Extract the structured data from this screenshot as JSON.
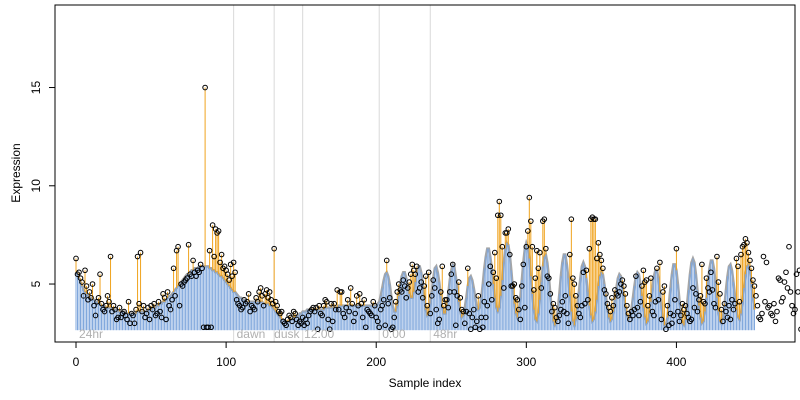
{
  "chart_data": {
    "type": "scatter",
    "title": "",
    "xlabel": "Sample index",
    "ylabel": "Expression",
    "xlim": [
      -14,
      479
    ],
    "ylim": [
      2.05,
      19.2
    ],
    "grid": false,
    "x_ticks": [
      0,
      100,
      200,
      300,
      400
    ],
    "x_tick_labels": [
      "0",
      "100",
      "200",
      "300",
      "400"
    ],
    "y_ticks": [
      5,
      10,
      15
    ],
    "y_tick_labels": [
      "5",
      "10",
      "15"
    ],
    "baseline": 2.65,
    "phase_boundaries": [
      105,
      132,
      151,
      202,
      236
    ],
    "phase_labels": [
      {
        "x": 2,
        "text": "24hr"
      },
      {
        "x": 107,
        "text": "dawn"
      },
      {
        "x": 132,
        "text": "dusk"
      },
      {
        "x": 152,
        "text": "12:00"
      },
      {
        "x": 204,
        "text": "0:00"
      },
      {
        "x": 238,
        "text": "48hr"
      }
    ],
    "series": [
      {
        "role": "points",
        "values": [
          6.3,
          5.5,
          5.6,
          5.3,
          5.1,
          4.4,
          5.7,
          4.9,
          4.2,
          4.6,
          4.3,
          5.0,
          3.9,
          3.4,
          4.1,
          4.3,
          5.5,
          4.0,
          3.7,
          3.6,
          3.9,
          4.4,
          4.1,
          6.4,
          3.6,
          3.9,
          3.7,
          3.2,
          3.3,
          3.8,
          3.3,
          3.5,
          3.6,
          3.4,
          3.2,
          4.1,
          3.0,
          3.5,
          3.4,
          3.0,
          3.7,
          6.4,
          4.0,
          6.6,
          3.6,
          3.9,
          3.3,
          3.5,
          3.8,
          3.2,
          3.9,
          3.7,
          4.0,
          3.4,
          3.5,
          4.1,
          3.6,
          3.3,
          4.5,
          4.3,
          3.2,
          4.6,
          3.9,
          3.7,
          4.2,
          5.8,
          4.4,
          6.7,
          6.9,
          3.9,
          5.0,
          4.9,
          5.1,
          5.2,
          5.3,
          7.0,
          5.5,
          5.4,
          6.2,
          5.6,
          5.4,
          5.7,
          5.6,
          6.0,
          5.8,
          2.8,
          15.0,
          2.8,
          2.8,
          6.7,
          2.8,
          8.0,
          6.4,
          7.8,
          7.6,
          7.7,
          6.1,
          6.5,
          5.8,
          5.9,
          5.7,
          5.5,
          5.2,
          6.0,
          5.4,
          6.1,
          5.6,
          4.2,
          4.0,
          3.9,
          3.7,
          3.8,
          4.2,
          4.0,
          4.1,
          4.5,
          3.6,
          3.9,
          3.8,
          3.7,
          4.3,
          4.1,
          4.6,
          4.8,
          4.4,
          3.9,
          4.5,
          4.7,
          4.3,
          4.6,
          4.2,
          4.0,
          6.8,
          4.1,
          3.9,
          3.6,
          3.5,
          3.6,
          3.1,
          3.0,
          2.9,
          3.2,
          3.4,
          3.3,
          3.1,
          3.6,
          3.5,
          3.2,
          2.9,
          3.1,
          3.0,
          3.3,
          2.9,
          3.2,
          3.0,
          3.4,
          3.6,
          3.7,
          3.8,
          3.6,
          3.8,
          2.7,
          3.9,
          3.5,
          3.4,
          3.9,
          4.2,
          4.1,
          3.2,
          2.7,
          4.0,
          3.1,
          4.0,
          3.7,
          4.7,
          3.7,
          4.6,
          4.6,
          3.5,
          3.3,
          3.8,
          4.2,
          3.6,
          4.8,
          4.0,
          3.1,
          3.5,
          4.4,
          3.9,
          4.5,
          4.0,
          3.3,
          4.2,
          2.8,
          3.7,
          3.6,
          3.5,
          3.4,
          4.1,
          3.9,
          3.3,
          3.1,
          2.8,
          3.7,
          3.9,
          4.2,
          2.9,
          6.2,
          4.0,
          4.3,
          2.7,
          2.8,
          3.3,
          4.1,
          4.6,
          5.0,
          4.7,
          4.6,
          5.2,
          4.9,
          4.3,
          4.8,
          5.1,
          5.5,
          6.0,
          5.7,
          5.5,
          5.9,
          4.6,
          4.8,
          5.1,
          4.3,
          4.9,
          5.4,
          3.9,
          5.6,
          3.5,
          4.4,
          5.2,
          4.8,
          3.7,
          3.0,
          3.2,
          4.6,
          5.9,
          3.9,
          4.2,
          4.2,
          3.8,
          4.6,
          5.5,
          6.0,
          4.6,
          2.9,
          4.4,
          5.1,
          4.3,
          3.7,
          3.6,
          3.0,
          3.6,
          5.8,
          3.5,
          2.7,
          3.3,
          3.7,
          2.8,
          3.1,
          4.4,
          2.7,
          3.3,
          2.8,
          4.1,
          3.3,
          3.9,
          5.0,
          5.9,
          4.2,
          5.6,
          6.6,
          5.3,
          8.5,
          9.2,
          8.5,
          6.9,
          4.8,
          7.6,
          7.6,
          7.8,
          6.5,
          4.9,
          4.9,
          5.0,
          4.3,
          4.2,
          3.7,
          3.2,
          4.9,
          6.0,
          3.8,
          6.9,
          7.7,
          9.4,
          8.2,
          6.9,
          4.7,
          5.3,
          6.7,
          5.8,
          6.6,
          4.8,
          8.2,
          8.3,
          6.8,
          5.4,
          5.3,
          4.5,
          3.6,
          4.0,
          3.8,
          3.3,
          3.1,
          3.4,
          3.7,
          4.1,
          3.6,
          4.4,
          3.5,
          3.0,
          6.5,
          8.3,
          5.3,
          5.0,
          4.4,
          3.9,
          3.5,
          3.3,
          3.9,
          5.6,
          4.0,
          5.7,
          4.2,
          6.8,
          8.3,
          8.4,
          8.3,
          8.3,
          6.3,
          7.1,
          6.5,
          6.2,
          5.8,
          4.7,
          4.5,
          4.0,
          3.8,
          3.6,
          4.3,
          3.9,
          4.7,
          4.5,
          4.4,
          4.6,
          5.0,
          5.2,
          4.9,
          4.5,
          3.9,
          3.5,
          3.2,
          3.6,
          3.4,
          3.7,
          5.4,
          3.8,
          3.4,
          4.1,
          4.9,
          5.7,
          5.1,
          5.2,
          3.9,
          4.4,
          5.3,
          3.6,
          3.4,
          4.1,
          5.8,
          4.2,
          6.1,
          3.2,
          4.6,
          4.9,
          2.7,
          3.9,
          2.9,
          3.5,
          3.0,
          3.4,
          4.2,
          6.8,
          3.6,
          3.1,
          3.4,
          4.0,
          3.7,
          3.9,
          3.5,
          3.3,
          3.1,
          3.2,
          4.8,
          3.8,
          4.5,
          3.6,
          4.2,
          4.4,
          6.0,
          4.1,
          4.0,
          5.3,
          4.8,
          4.6,
          5.6,
          4.7,
          4.0,
          3.8,
          6.4,
          5.1,
          4.5,
          3.7,
          3.1,
          4.0,
          3.6,
          3.3,
          3.9,
          3.2,
          4.2,
          3.7,
          4.0,
          6.3,
          5.9,
          4.1,
          6.5,
          6.9,
          7.0,
          7.3,
          7.1,
          6.6,
          6.2,
          5.8,
          5.2,
          4.9,
          4.4,
          3.9,
          3.3,
          3.2,
          3.5,
          6.4,
          4.1,
          6.1,
          3.8,
          3.9,
          3.5,
          3.4,
          4.0,
          3.1,
          3.6,
          5.3,
          5.2,
          4.1,
          4.3,
          5.1,
          5.6,
          4.8,
          6.9,
          4.6,
          3.9,
          3.5,
          3.7,
          5.5,
          4.6,
          5.7,
          2.7,
          5.6,
          5.5,
          2.7,
          2.7
        ]
      },
      {
        "role": "fitted",
        "values": [
          5.6,
          5.5,
          5.3,
          5.1,
          4.9,
          4.7,
          4.6,
          4.5,
          4.4,
          4.3,
          4.3,
          4.2,
          4.2,
          4.1,
          4.1,
          4.0,
          4.0,
          3.9,
          3.9,
          3.9,
          3.8,
          3.8,
          3.8,
          3.8,
          3.7,
          3.7,
          3.7,
          3.7,
          3.6,
          3.6,
          3.6,
          3.6,
          3.6,
          3.5,
          3.5,
          3.5,
          3.5,
          3.5,
          3.5,
          3.5,
          3.5,
          3.6,
          3.6,
          3.6,
          3.6,
          3.6,
          3.6,
          3.6,
          3.7,
          3.7,
          3.7,
          3.8,
          3.8,
          3.8,
          3.9,
          3.9,
          4.0,
          4.0,
          4.1,
          4.1,
          4.2,
          4.3,
          4.4,
          4.4,
          4.5,
          4.6,
          4.7,
          4.8,
          4.9,
          5.0,
          5.1,
          5.2,
          5.3,
          5.4,
          5.5,
          5.5,
          5.6,
          5.7,
          5.7,
          5.8,
          5.8,
          5.8,
          5.9,
          5.9,
          5.9,
          5.9,
          5.9,
          5.9,
          5.9,
          5.8,
          5.8,
          5.7,
          5.7,
          5.6,
          5.6,
          5.5,
          5.4,
          5.4,
          5.3,
          5.2,
          5.1,
          5.0,
          4.9,
          4.8,
          4.7,
          4.6,
          4.6,
          4.5,
          4.4,
          4.3,
          4.3,
          4.2,
          4.2,
          4.1,
          4.1,
          4.1,
          4.1,
          4.1,
          4.1,
          4.1,
          4.1,
          4.1,
          4.1,
          4.1,
          4.1,
          4.0,
          4.0,
          4.0,
          4.0,
          3.9,
          3.9,
          3.8,
          3.7,
          3.6,
          3.5,
          3.4,
          3.3,
          3.2,
          3.2,
          3.1,
          3.1,
          3.1,
          3.1,
          3.2,
          3.2,
          3.3,
          3.3,
          3.4,
          3.4,
          3.5,
          3.5,
          3.6,
          3.6,
          3.6,
          3.7,
          3.7,
          3.7,
          3.7,
          3.7,
          3.7,
          3.7,
          3.7,
          3.7,
          3.7,
          3.7,
          3.7,
          3.8,
          3.8,
          3.8,
          3.8,
          3.8,
          3.8,
          3.8,
          3.8,
          3.8,
          3.9,
          3.9,
          3.9,
          3.9,
          3.9,
          3.9,
          3.9,
          3.9,
          3.9,
          3.9,
          3.9,
          3.9,
          3.9,
          3.9,
          3.9,
          3.9,
          3.9,
          3.9,
          3.9,
          3.9,
          3.9,
          3.9,
          3.9,
          3.9,
          3.9,
          3.9,
          4.0,
          4.1,
          4.4,
          4.8,
          5.2,
          5.5,
          5.6,
          5.4,
          5.0,
          4.4,
          3.9,
          3.6,
          3.6,
          3.9,
          4.4,
          5.0,
          5.4,
          5.6,
          5.6,
          5.3,
          4.9,
          4.5,
          4.3,
          4.3,
          4.6,
          5.1,
          5.6,
          5.9,
          5.9,
          5.6,
          5.0,
          4.3,
          3.7,
          3.4,
          3.5,
          4.0,
          4.6,
          5.3,
          5.8,
          5.9,
          5.6,
          5.1,
          4.4,
          3.8,
          3.5,
          3.5,
          3.9,
          4.5,
          5.2,
          5.7,
          6.0,
          5.9,
          5.4,
          4.8,
          4.1,
          3.6,
          3.3,
          3.4,
          3.8,
          4.3,
          4.9,
          5.3,
          5.4,
          5.2,
          4.8,
          4.3,
          3.9,
          3.7,
          3.8,
          4.3,
          5.0,
          5.8,
          6.4,
          6.8,
          6.8,
          6.4,
          5.8,
          5.0,
          4.3,
          3.8,
          3.6,
          3.8,
          4.4,
          5.2,
          6.1,
          6.8,
          7.1,
          7.0,
          6.5,
          5.7,
          4.8,
          4.0,
          3.5,
          3.3,
          3.6,
          4.3,
          5.2,
          6.1,
          6.8,
          7.1,
          6.9,
          6.3,
          5.4,
          4.5,
          3.7,
          3.2,
          3.1,
          3.5,
          4.2,
          5.1,
          5.9,
          6.4,
          6.5,
          6.1,
          5.4,
          4.5,
          3.7,
          3.1,
          2.9,
          3.1,
          3.7,
          4.5,
          5.4,
          6.1,
          6.5,
          6.5,
          6.0,
          5.3,
          4.4,
          3.6,
          3.1,
          2.9,
          3.2,
          3.8,
          4.6,
          5.3,
          5.9,
          6.1,
          5.9,
          5.3,
          4.6,
          3.9,
          3.4,
          3.1,
          3.2,
          3.6,
          4.2,
          4.9,
          5.4,
          5.6,
          5.5,
          5.0,
          4.4,
          3.8,
          3.3,
          3.1,
          3.2,
          3.6,
          4.2,
          4.8,
          5.3,
          5.5,
          5.4,
          5.0,
          4.4,
          3.8,
          3.4,
          3.2,
          3.3,
          3.7,
          4.3,
          4.9,
          5.4,
          5.6,
          5.5,
          5.0,
          4.4,
          3.8,
          3.3,
          3.0,
          3.1,
          3.5,
          4.1,
          4.8,
          5.4,
          5.7,
          5.7,
          5.3,
          4.6,
          3.9,
          3.3,
          2.9,
          2.9,
          3.3,
          4.0,
          4.8,
          5.5,
          6.0,
          6.0,
          5.7,
          5.0,
          4.2,
          3.5,
          3.0,
          2.9,
          3.2,
          3.9,
          4.7,
          5.5,
          6.1,
          6.3,
          6.1,
          5.5,
          4.7,
          3.9,
          3.3,
          3.0,
          3.1,
          3.6,
          4.3,
          5.1,
          5.8,
          6.2,
          6.2,
          5.8,
          5.1,
          4.3,
          3.6,
          3.1,
          3.0,
          3.3,
          3.9,
          4.7,
          5.4,
          5.9,
          6.0,
          5.7,
          5.1,
          4.4,
          3.7,
          3.3,
          3.2,
          3.5,
          4.1,
          4.8,
          5.5,
          5.9,
          6.0,
          5.7,
          5.0,
          4.3,
          3.7
        ]
      }
    ]
  }
}
